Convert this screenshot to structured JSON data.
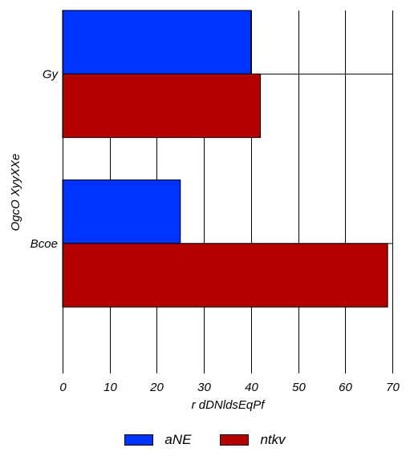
{
  "chart_data": {
    "type": "bar",
    "orientation": "horizontal",
    "categories": [
      "Gy",
      "Bcoe"
    ],
    "series": [
      {
        "name": "aNE",
        "color": "#0033ff",
        "values": [
          40,
          25
        ]
      },
      {
        "name": "ntkv",
        "color": "#b50000",
        "values": [
          42,
          69
        ]
      }
    ],
    "xlabel": "r dDNldsEqPf",
    "ylabel": "OgcO XyyXXe",
    "xlim": [
      0,
      70
    ],
    "xticks": [
      0,
      10,
      20,
      30,
      40,
      50,
      60,
      70
    ],
    "grid": true,
    "legend_position": "bottom"
  }
}
